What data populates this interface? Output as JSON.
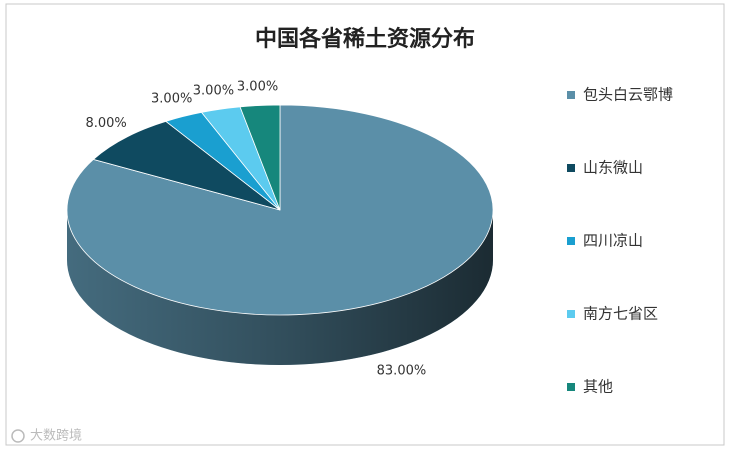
{
  "chart_data": {
    "type": "pie3d",
    "title": "中国各省稀土资源分布",
    "categories": [
      "包头白云鄂博",
      "山东微山",
      "四川凉山",
      "南方七省区",
      "其他"
    ],
    "values": [
      83,
      8,
      3,
      3,
      3
    ],
    "value_labels": [
      "83.00%",
      "8.00%",
      "3.00%",
      "3.00%",
      "3.00%"
    ],
    "colors": [
      "#5b8fa8",
      "#0f4a60",
      "#1a9fd0",
      "#5ccbef",
      "#16877c"
    ],
    "legend": "right"
  },
  "watermark": "大数跨境"
}
